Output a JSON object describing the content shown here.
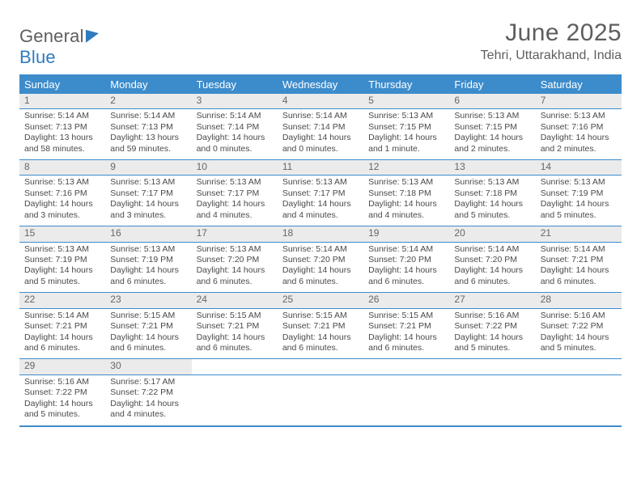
{
  "brand": {
    "name_a": "General",
    "name_b": "Blue"
  },
  "header": {
    "title": "June 2025",
    "subtitle": "Tehri, Uttarakhand, India"
  },
  "colors": {
    "accent": "#3c8ccc",
    "row_alt": "#ebebeb",
    "text": "#4a4a4a",
    "title": "#5e5e5e"
  },
  "weekdays": [
    "Sunday",
    "Monday",
    "Tuesday",
    "Wednesday",
    "Thursday",
    "Friday",
    "Saturday"
  ],
  "weeks": [
    [
      {
        "n": "1",
        "sr": "Sunrise: 5:14 AM",
        "ss": "Sunset: 7:13 PM",
        "dl": "Daylight: 13 hours and 58 minutes."
      },
      {
        "n": "2",
        "sr": "Sunrise: 5:14 AM",
        "ss": "Sunset: 7:13 PM",
        "dl": "Daylight: 13 hours and 59 minutes."
      },
      {
        "n": "3",
        "sr": "Sunrise: 5:14 AM",
        "ss": "Sunset: 7:14 PM",
        "dl": "Daylight: 14 hours and 0 minutes."
      },
      {
        "n": "4",
        "sr": "Sunrise: 5:14 AM",
        "ss": "Sunset: 7:14 PM",
        "dl": "Daylight: 14 hours and 0 minutes."
      },
      {
        "n": "5",
        "sr": "Sunrise: 5:13 AM",
        "ss": "Sunset: 7:15 PM",
        "dl": "Daylight: 14 hours and 1 minute."
      },
      {
        "n": "6",
        "sr": "Sunrise: 5:13 AM",
        "ss": "Sunset: 7:15 PM",
        "dl": "Daylight: 14 hours and 2 minutes."
      },
      {
        "n": "7",
        "sr": "Sunrise: 5:13 AM",
        "ss": "Sunset: 7:16 PM",
        "dl": "Daylight: 14 hours and 2 minutes."
      }
    ],
    [
      {
        "n": "8",
        "sr": "Sunrise: 5:13 AM",
        "ss": "Sunset: 7:16 PM",
        "dl": "Daylight: 14 hours and 3 minutes."
      },
      {
        "n": "9",
        "sr": "Sunrise: 5:13 AM",
        "ss": "Sunset: 7:17 PM",
        "dl": "Daylight: 14 hours and 3 minutes."
      },
      {
        "n": "10",
        "sr": "Sunrise: 5:13 AM",
        "ss": "Sunset: 7:17 PM",
        "dl": "Daylight: 14 hours and 4 minutes."
      },
      {
        "n": "11",
        "sr": "Sunrise: 5:13 AM",
        "ss": "Sunset: 7:17 PM",
        "dl": "Daylight: 14 hours and 4 minutes."
      },
      {
        "n": "12",
        "sr": "Sunrise: 5:13 AM",
        "ss": "Sunset: 7:18 PM",
        "dl": "Daylight: 14 hours and 4 minutes."
      },
      {
        "n": "13",
        "sr": "Sunrise: 5:13 AM",
        "ss": "Sunset: 7:18 PM",
        "dl": "Daylight: 14 hours and 5 minutes."
      },
      {
        "n": "14",
        "sr": "Sunrise: 5:13 AM",
        "ss": "Sunset: 7:19 PM",
        "dl": "Daylight: 14 hours and 5 minutes."
      }
    ],
    [
      {
        "n": "15",
        "sr": "Sunrise: 5:13 AM",
        "ss": "Sunset: 7:19 PM",
        "dl": "Daylight: 14 hours and 5 minutes."
      },
      {
        "n": "16",
        "sr": "Sunrise: 5:13 AM",
        "ss": "Sunset: 7:19 PM",
        "dl": "Daylight: 14 hours and 6 minutes."
      },
      {
        "n": "17",
        "sr": "Sunrise: 5:13 AM",
        "ss": "Sunset: 7:20 PM",
        "dl": "Daylight: 14 hours and 6 minutes."
      },
      {
        "n": "18",
        "sr": "Sunrise: 5:14 AM",
        "ss": "Sunset: 7:20 PM",
        "dl": "Daylight: 14 hours and 6 minutes."
      },
      {
        "n": "19",
        "sr": "Sunrise: 5:14 AM",
        "ss": "Sunset: 7:20 PM",
        "dl": "Daylight: 14 hours and 6 minutes."
      },
      {
        "n": "20",
        "sr": "Sunrise: 5:14 AM",
        "ss": "Sunset: 7:20 PM",
        "dl": "Daylight: 14 hours and 6 minutes."
      },
      {
        "n": "21",
        "sr": "Sunrise: 5:14 AM",
        "ss": "Sunset: 7:21 PM",
        "dl": "Daylight: 14 hours and 6 minutes."
      }
    ],
    [
      {
        "n": "22",
        "sr": "Sunrise: 5:14 AM",
        "ss": "Sunset: 7:21 PM",
        "dl": "Daylight: 14 hours and 6 minutes."
      },
      {
        "n": "23",
        "sr": "Sunrise: 5:15 AM",
        "ss": "Sunset: 7:21 PM",
        "dl": "Daylight: 14 hours and 6 minutes."
      },
      {
        "n": "24",
        "sr": "Sunrise: 5:15 AM",
        "ss": "Sunset: 7:21 PM",
        "dl": "Daylight: 14 hours and 6 minutes."
      },
      {
        "n": "25",
        "sr": "Sunrise: 5:15 AM",
        "ss": "Sunset: 7:21 PM",
        "dl": "Daylight: 14 hours and 6 minutes."
      },
      {
        "n": "26",
        "sr": "Sunrise: 5:15 AM",
        "ss": "Sunset: 7:21 PM",
        "dl": "Daylight: 14 hours and 6 minutes."
      },
      {
        "n": "27",
        "sr": "Sunrise: 5:16 AM",
        "ss": "Sunset: 7:22 PM",
        "dl": "Daylight: 14 hours and 5 minutes."
      },
      {
        "n": "28",
        "sr": "Sunrise: 5:16 AM",
        "ss": "Sunset: 7:22 PM",
        "dl": "Daylight: 14 hours and 5 minutes."
      }
    ],
    [
      {
        "n": "29",
        "sr": "Sunrise: 5:16 AM",
        "ss": "Sunset: 7:22 PM",
        "dl": "Daylight: 14 hours and 5 minutes."
      },
      {
        "n": "30",
        "sr": "Sunrise: 5:17 AM",
        "ss": "Sunset: 7:22 PM",
        "dl": "Daylight: 14 hours and 4 minutes."
      },
      null,
      null,
      null,
      null,
      null
    ]
  ]
}
